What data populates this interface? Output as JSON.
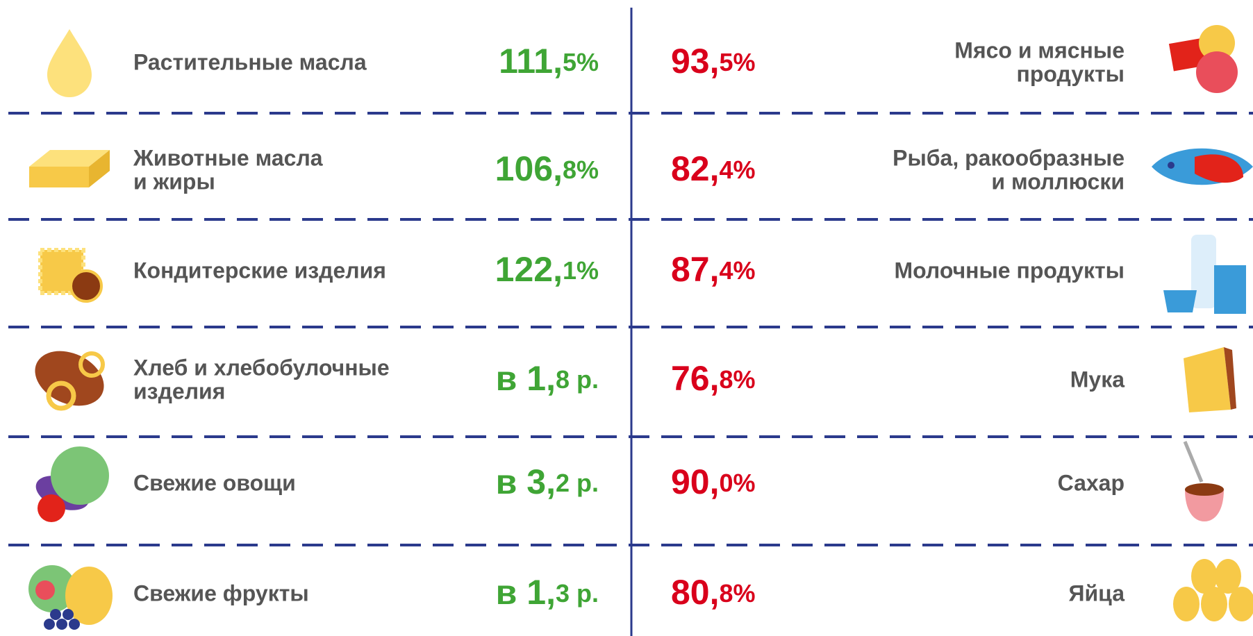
{
  "left": [
    {
      "label": [
        "Растительные масла"
      ],
      "value": "111,5%"
    },
    {
      "label": [
        "Животные масла",
        "и жиры"
      ],
      "value": "106,8%"
    },
    {
      "label": [
        "Кондитерские изделия"
      ],
      "value": "122,1%"
    },
    {
      "label": [
        "Хлеб и хлебобулочные",
        "изделия"
      ],
      "value": "в 1,8 р."
    },
    {
      "label": [
        "Свежие овощи"
      ],
      "value": "в 3,2 р."
    },
    {
      "label": [
        "Свежие фрукты"
      ],
      "value": "в 1,3 р."
    }
  ],
  "right": [
    {
      "label": [
        "Мясо и мясные",
        "продукты"
      ],
      "value": "93,5%"
    },
    {
      "label": [
        "Рыба, ракообразные",
        "и моллюски"
      ],
      "value": "82,4%"
    },
    {
      "label": [
        "Молочные продукты"
      ],
      "value": "87,4%"
    },
    {
      "label": [
        "Мука"
      ],
      "value": "76,8%"
    },
    {
      "label": [
        "Сахар"
      ],
      "value": "90,0%"
    },
    {
      "label": [
        "Яйца"
      ],
      "value": "80,8%"
    }
  ]
}
